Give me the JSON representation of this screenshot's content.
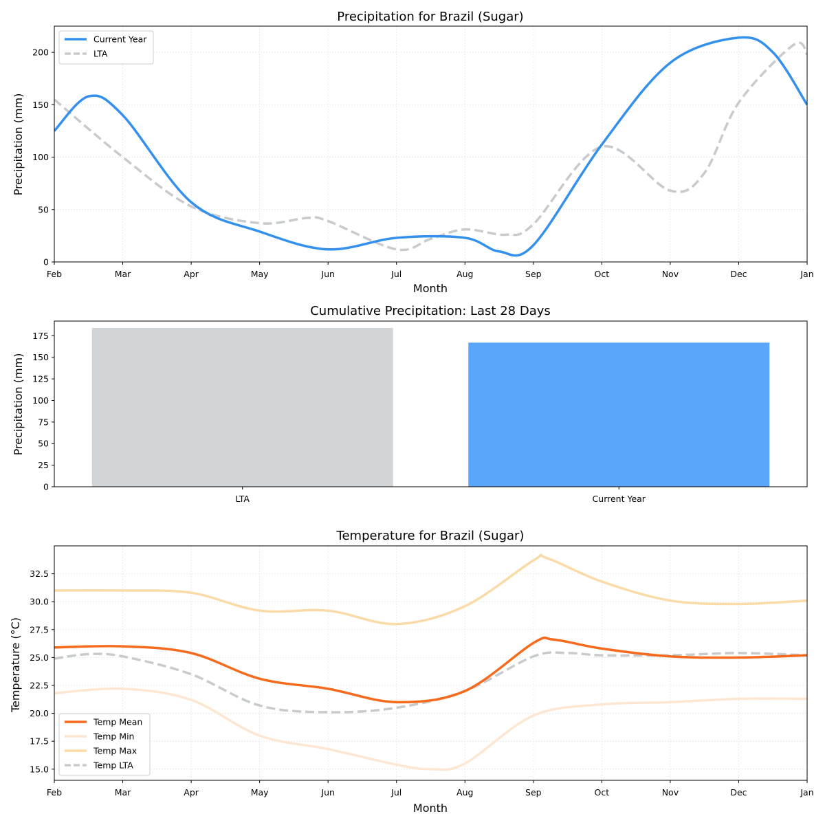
{
  "colors": {
    "current_year": "#3390EC",
    "lta_line": "#C8CBCD",
    "lta_bar": "#D1D5D8",
    "current_bar": "#5AA6FA",
    "temp_mean": "#F56A1C",
    "temp_min": "#FDE7D2",
    "temp_max": "#FADBA8",
    "temp_lta": "#C8CBCD"
  },
  "chart_data": [
    {
      "type": "line",
      "title": "Precipitation for Brazil (Sugar)",
      "xlabel": "Month",
      "ylabel": "Precipitation (mm)",
      "x_ticks": [
        "Feb",
        "Mar",
        "Apr",
        "May",
        "Jun",
        "Jul",
        "Aug",
        "Sep",
        "Oct",
        "Nov",
        "Dec",
        "Jan"
      ],
      "xlim": [
        0,
        11
      ],
      "ylim": [
        0,
        225
      ],
      "y_ticks": [
        0,
        50,
        100,
        150,
        200
      ],
      "grid": true,
      "legend": "upper-left",
      "series": [
        {
          "name": "Current Year",
          "style": "solid",
          "color_key": "current_year",
          "x": [
            0,
            0.5,
            1,
            2,
            3,
            4,
            5,
            6,
            6.5,
            7,
            8,
            9,
            10,
            10.5,
            11
          ],
          "y": [
            125,
            158,
            140,
            57,
            29,
            12,
            23,
            23,
            10,
            16,
            112,
            190,
            214,
            200,
            150
          ]
        },
        {
          "name": "LTA",
          "style": "dashed",
          "color_key": "lta_line",
          "x": [
            0,
            1,
            2,
            3,
            3.7,
            4,
            5,
            5.5,
            6,
            6.6,
            7,
            8,
            9,
            9.5,
            10,
            10.8,
            11
          ],
          "y": [
            155,
            100,
            53,
            37,
            42,
            39,
            12,
            22,
            31,
            26,
            36,
            110,
            68,
            85,
            152,
            207,
            198
          ]
        }
      ]
    },
    {
      "type": "bar",
      "title": "Cumulative Precipitation: Last 28 Days",
      "xlabel": "",
      "ylabel": "Precipitation (mm)",
      "categories": [
        "LTA",
        "Current Year"
      ],
      "values": [
        184,
        167
      ],
      "bar_color_keys": [
        "lta_bar",
        "current_bar"
      ],
      "ylim": [
        0,
        192
      ],
      "y_ticks": [
        0,
        25,
        50,
        75,
        100,
        125,
        150,
        175
      ],
      "grid": false
    },
    {
      "type": "line",
      "title": "Temperature for Brazil (Sugar)",
      "xlabel": "Month",
      "ylabel": "Temperature (°C)",
      "x_ticks": [
        "Feb",
        "Mar",
        "Apr",
        "May",
        "Jun",
        "Jul",
        "Aug",
        "Sep",
        "Oct",
        "Nov",
        "Dec",
        "Jan"
      ],
      "xlim": [
        0,
        11
      ],
      "ylim": [
        14,
        35
      ],
      "y_ticks": [
        15.0,
        17.5,
        20.0,
        22.5,
        25.0,
        27.5,
        30.0,
        32.5
      ],
      "grid": true,
      "legend": "lower-left",
      "series": [
        {
          "name": "Temp Mean",
          "style": "solid",
          "color_key": "temp_mean",
          "x": [
            0,
            1,
            2,
            3,
            4,
            5,
            6,
            7,
            7.3,
            8,
            9,
            10,
            11
          ],
          "y": [
            25.9,
            26.0,
            25.4,
            23.1,
            22.2,
            21.0,
            22.0,
            26.3,
            26.6,
            25.8,
            25.1,
            25.0,
            25.2
          ]
        },
        {
          "name": "Temp Min",
          "style": "solid",
          "color_key": "temp_min",
          "x": [
            0,
            1,
            2,
            3,
            4,
            5,
            5.5,
            6,
            7,
            8,
            9,
            10,
            11
          ],
          "y": [
            21.8,
            22.2,
            21.2,
            18.0,
            16.8,
            15.4,
            15.0,
            15.5,
            19.8,
            20.8,
            21.0,
            21.3,
            21.3
          ]
        },
        {
          "name": "Temp Max",
          "style": "solid",
          "color_key": "temp_max",
          "x": [
            0,
            1,
            2,
            3,
            4,
            5,
            6,
            7,
            7.2,
            8,
            9,
            10,
            11
          ],
          "y": [
            31.0,
            31.0,
            30.8,
            29.2,
            29.2,
            28.0,
            29.6,
            33.7,
            33.9,
            31.8,
            30.1,
            29.8,
            30.1
          ]
        },
        {
          "name": "Temp LTA",
          "style": "dashed",
          "color_key": "temp_lta",
          "x": [
            0,
            0.5,
            1,
            2,
            3,
            4,
            5,
            6,
            7,
            7.5,
            8,
            9,
            10,
            11
          ],
          "y": [
            24.9,
            25.3,
            25.1,
            23.5,
            20.7,
            20.1,
            20.5,
            22.0,
            25.1,
            25.4,
            25.2,
            25.2,
            25.4,
            25.2
          ]
        }
      ]
    }
  ]
}
